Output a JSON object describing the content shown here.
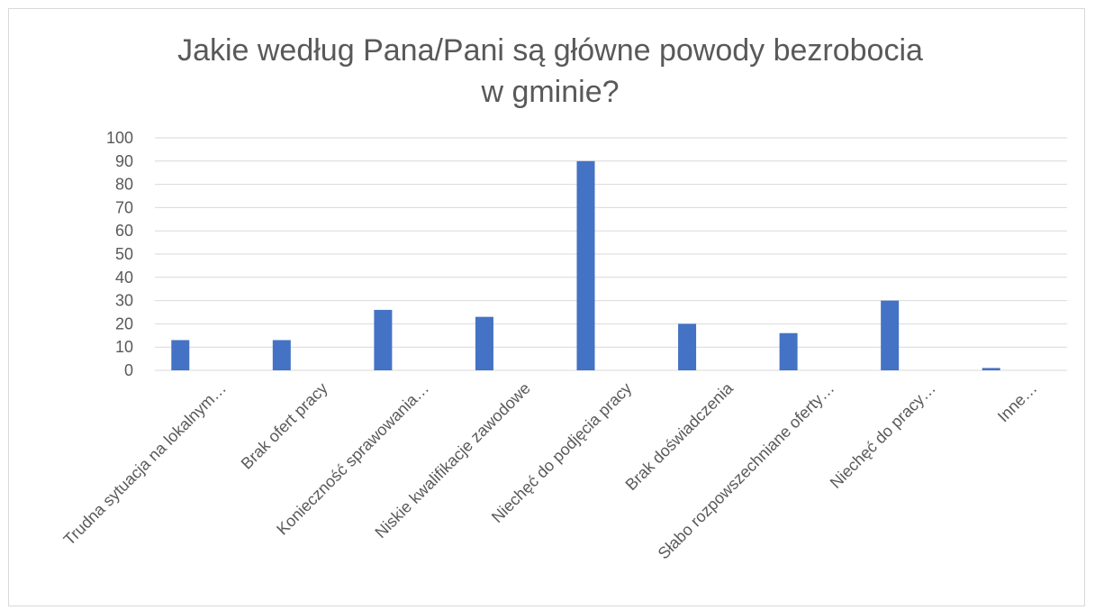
{
  "chart_data": {
    "type": "bar",
    "title_lines": [
      "Jakie według Pana/Pani są główne powody bezrobocia",
      "w gminie?"
    ],
    "categories": [
      "Trudna sytuacja na lokalnym…",
      "Brak ofert pracy",
      "Konieczność sprawowania…",
      "Niskie kwalifikacje zawodowe",
      "Niechęć do podjęcia pracy",
      "Brak doświadczenia",
      "Słabo rozpowszechniane oferty…",
      "Niechęć do pracy…",
      "Inne…"
    ],
    "values": [
      13,
      13,
      26,
      23,
      90,
      20,
      16,
      30,
      1
    ],
    "ylim": [
      0,
      100
    ],
    "yticks": [
      "0",
      "10",
      "20",
      "30",
      "40",
      "50",
      "60",
      "70",
      "80",
      "90",
      "100"
    ],
    "grid": true,
    "legend": "none",
    "bar_color": "#4472c4",
    "grid_color": "#d9d9d9"
  }
}
